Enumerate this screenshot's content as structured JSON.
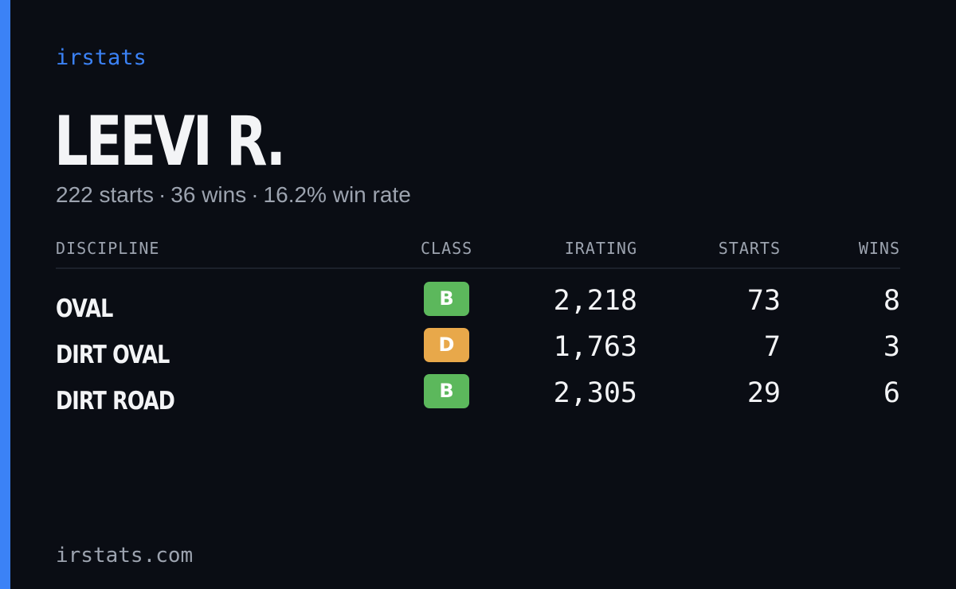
{
  "brand": "irstats",
  "driver": {
    "name": "LEEVI R.",
    "starts_text": "222 starts",
    "wins_text": "36 wins",
    "win_rate_text": "16.2% win rate",
    "separator": "·"
  },
  "table": {
    "headers": {
      "discipline": "DISCIPLINE",
      "class": "CLASS",
      "irating": "IRATING",
      "starts": "STARTS",
      "wins": "WINS"
    },
    "rows": [
      {
        "discipline": "OVAL",
        "class": "B",
        "class_color": "#5cb85c",
        "irating": "2,218",
        "starts": "73",
        "wins": "8"
      },
      {
        "discipline": "DIRT OVAL",
        "class": "D",
        "class_color": "#e8a84a",
        "irating": "1,763",
        "starts": "7",
        "wins": "3"
      },
      {
        "discipline": "DIRT ROAD",
        "class": "B",
        "class_color": "#5cb85c",
        "irating": "2,305",
        "starts": "29",
        "wins": "6"
      }
    ]
  },
  "footer": {
    "domain": "irstats.com"
  },
  "colors": {
    "accent": "#3b82f6",
    "background": "#0a0d14",
    "muted_text": "#9ca3af",
    "primary_text": "#f3f4f6"
  }
}
